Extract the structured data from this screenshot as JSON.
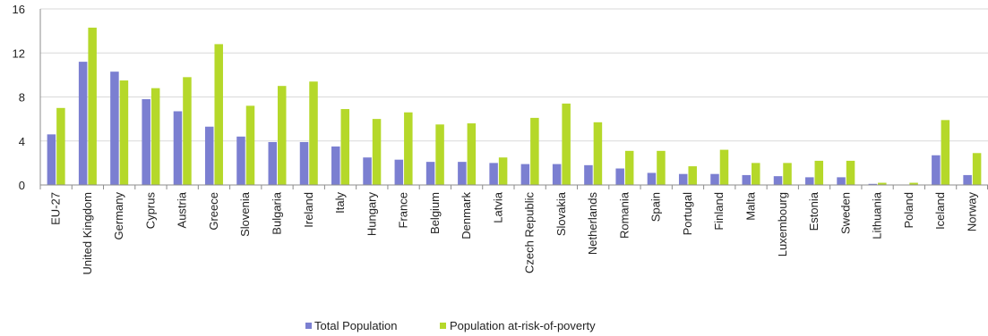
{
  "chart_data": {
    "type": "bar",
    "categories": [
      "EU-27",
      "United Kingdom",
      "Germany",
      "Cyprus",
      "Austria",
      "Greece",
      "Slovenia",
      "Bulgaria",
      "Ireland",
      "Italy",
      "Hungary",
      "France",
      "Belgium",
      "Denmark",
      "Latvia",
      "Czech Republic",
      "Slovakia",
      "Netherlands",
      "Romania",
      "Spain",
      "Portugal",
      "Finland",
      "Malta",
      "Luxembourg",
      "Estonia",
      "Sweden",
      "Lithuania",
      "Poland",
      "Iceland",
      "Norway"
    ],
    "series": [
      {
        "name": "Total Population",
        "color": "#7b7fd1",
        "values": [
          4.6,
          11.2,
          10.3,
          7.8,
          6.7,
          5.3,
          4.4,
          3.9,
          3.9,
          3.5,
          2.5,
          2.3,
          2.1,
          2.1,
          2.0,
          1.9,
          1.9,
          1.8,
          1.5,
          1.1,
          1.0,
          1.0,
          0.9,
          0.8,
          0.7,
          0.7,
          0.1,
          0.0,
          2.7,
          0.9
        ]
      },
      {
        "name": "Population at-risk-of-poverty",
        "color": "#b5d82a",
        "values": [
          7.0,
          14.3,
          9.5,
          8.8,
          9.8,
          12.8,
          7.2,
          9.0,
          9.4,
          6.9,
          6.0,
          6.6,
          5.5,
          5.6,
          2.5,
          6.1,
          7.4,
          5.7,
          3.1,
          3.1,
          1.7,
          3.2,
          2.0,
          2.0,
          2.2,
          2.2,
          0.2,
          0.2,
          5.9,
          2.9
        ]
      }
    ],
    "ylim": [
      0,
      16
    ],
    "yticks": [
      "0",
      "4",
      "8",
      "12",
      "16"
    ],
    "grid": true,
    "legend": "bottom",
    "title": "",
    "xlabel": "",
    "ylabel": ""
  }
}
